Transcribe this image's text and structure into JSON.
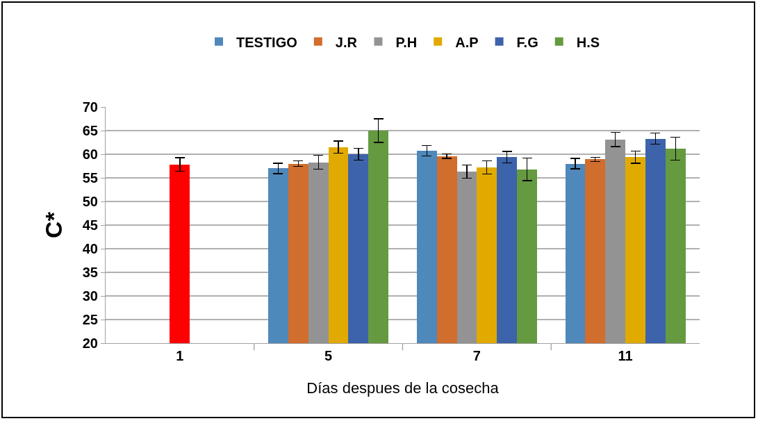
{
  "chart_data": {
    "type": "bar",
    "xlabel": "Días despues de la cosecha",
    "ylabel": "C*",
    "categories": [
      "1",
      "5",
      "7",
      "11"
    ],
    "series": [
      {
        "name": "TESTIGO",
        "color": "#4f88bb",
        "values": [
          null,
          57.0,
          60.7,
          58.0
        ],
        "errors": [
          null,
          1.1,
          1.1,
          1.1
        ]
      },
      {
        "name": "J.R",
        "color": "#d16d2d",
        "values": [
          null,
          58.0,
          59.6,
          58.9
        ],
        "errors": [
          null,
          0.6,
          0.5,
          0.4
        ]
      },
      {
        "name": "P.H",
        "color": "#939393",
        "values": [
          null,
          58.3,
          56.3,
          63.1
        ],
        "errors": [
          null,
          1.5,
          1.4,
          1.5
        ]
      },
      {
        "name": "A.P",
        "color": "#e0aa00",
        "values": [
          null,
          61.5,
          57.2,
          59.4
        ],
        "errors": [
          null,
          1.3,
          1.4,
          1.3
        ]
      },
      {
        "name": "F.G",
        "color": "#3d63ab",
        "values": [
          null,
          60.0,
          59.4,
          63.3
        ],
        "errors": [
          null,
          1.2,
          1.2,
          1.2
        ]
      },
      {
        "name": "H.S",
        "color": "#659a40",
        "values": [
          null,
          65.0,
          56.8,
          61.2
        ],
        "errors": [
          null,
          2.5,
          2.4,
          2.4
        ]
      },
      {
        "color": "#ff0000",
        "values": [
          57.8,
          null,
          null,
          null
        ],
        "errors": [
          1.45,
          null,
          null,
          null
        ]
      }
    ],
    "ylim": [
      20,
      70
    ],
    "yticks": [
      20,
      25,
      30,
      35,
      40,
      45,
      50,
      55,
      60,
      65,
      70
    ],
    "grid": "y",
    "legend": "top"
  }
}
